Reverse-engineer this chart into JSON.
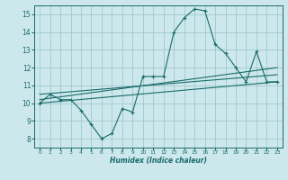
{
  "xlabel": "Humidex (Indice chaleur)",
  "ylabel": "",
  "bg_color": "#cce8ec",
  "grid_color": "#a0c8cc",
  "line_color": "#1a6b6b",
  "xlim": [
    -0.5,
    23.5
  ],
  "ylim": [
    7.5,
    15.5
  ],
  "xticks": [
    0,
    1,
    2,
    3,
    4,
    5,
    6,
    7,
    8,
    9,
    10,
    11,
    12,
    13,
    14,
    15,
    16,
    17,
    18,
    19,
    20,
    21,
    22,
    23
  ],
  "yticks": [
    8,
    9,
    10,
    11,
    12,
    13,
    14,
    15
  ],
  "series1_x": [
    0,
    1,
    2,
    3,
    4,
    5,
    6,
    7,
    8,
    9,
    10,
    11,
    12,
    13,
    14,
    15,
    16,
    17,
    18,
    19,
    20,
    21,
    22,
    23
  ],
  "series1_y": [
    10.0,
    10.5,
    10.2,
    10.2,
    9.6,
    8.8,
    8.0,
    8.3,
    9.7,
    9.5,
    11.5,
    11.5,
    11.5,
    14.0,
    14.8,
    15.3,
    15.2,
    13.3,
    12.8,
    12.0,
    11.2,
    12.9,
    11.2,
    11.2
  ],
  "series2_x": [
    0,
    23
  ],
  "series2_y": [
    10.0,
    11.2
  ],
  "series3_x": [
    0,
    23
  ],
  "series3_y": [
    10.2,
    12.0
  ],
  "series4_x": [
    0,
    23
  ],
  "series4_y": [
    10.5,
    11.6
  ]
}
